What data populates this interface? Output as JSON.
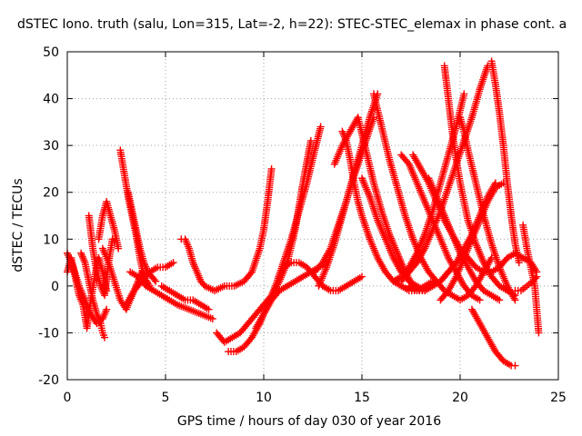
{
  "chart_data": {
    "type": "scatter",
    "title": "dSTEC Iono. truth (salu, Lon=315, Lat=-2, h=22): STEC-STEC_elemax in phase cont. a",
    "xlabel": "GPS time / hours of day 030 of year 2016",
    "ylabel": "dSTEC  / TECUs",
    "xlim": [
      0,
      25
    ],
    "ylim": [
      -20,
      50
    ],
    "xticks": [
      0,
      5,
      10,
      15,
      20,
      25
    ],
    "yticks": [
      -20,
      -10,
      0,
      10,
      20,
      30,
      40,
      50
    ],
    "grid": true,
    "marker": "+",
    "color": "#ff0000",
    "series": [
      {
        "x": [
          0.0,
          0.2,
          0.4,
          0.6,
          0.8,
          1.0,
          1.2,
          1.4,
          1.6,
          1.8,
          2.0
        ],
        "y": [
          3,
          6,
          2,
          -2,
          -4,
          -9,
          -3,
          2,
          6,
          3,
          -1
        ]
      },
      {
        "x": [
          0.0,
          0.3,
          0.6,
          0.9,
          1.2,
          1.5,
          1.8,
          2.0
        ],
        "y": [
          7,
          4,
          0,
          -3,
          -6,
          -8,
          -7,
          -5
        ]
      },
      {
        "x": [
          0.7,
          0.9,
          1.1,
          1.3,
          1.5,
          1.7,
          1.8,
          1.9
        ],
        "y": [
          7,
          5,
          1,
          -3,
          -6,
          -8,
          -10,
          -11
        ]
      },
      {
        "x": [
          1.1,
          1.3,
          1.5,
          1.7,
          1.9,
          2.1,
          2.3
        ],
        "y": [
          15,
          8,
          3,
          0,
          -2,
          5,
          10
        ]
      },
      {
        "x": [
          1.6,
          1.8,
          2.0,
          2.2,
          2.4,
          2.6
        ],
        "y": [
          10,
          15,
          18,
          15,
          12,
          8
        ]
      },
      {
        "x": [
          1.8,
          2.1,
          2.4,
          2.7,
          3.0,
          3.4,
          3.8
        ],
        "y": [
          8,
          5,
          1,
          -3,
          -5,
          -1,
          3
        ]
      },
      {
        "x": [
          2.7,
          2.9,
          3.1,
          3.3,
          3.5,
          3.7,
          3.9,
          4.2
        ],
        "y": [
          29,
          24,
          19,
          15,
          11,
          6,
          2,
          0
        ]
      },
      {
        "x": [
          3.1,
          3.3,
          3.5,
          3.7,
          3.9,
          4.1,
          4.3,
          4.5
        ],
        "y": [
          20,
          16,
          12,
          8,
          5,
          3,
          2,
          1
        ]
      },
      {
        "x": [
          3.0,
          3.4,
          3.8,
          4.2,
          4.6,
          5.0,
          5.4
        ],
        "y": [
          -4,
          -1,
          1,
          3,
          4,
          4,
          5
        ]
      },
      {
        "x": [
          3.2,
          3.6,
          4.0,
          4.4,
          4.8,
          5.2,
          5.6,
          6.2,
          6.8,
          7.4
        ],
        "y": [
          3,
          2,
          0,
          -1,
          -2,
          -3,
          -4,
          -5,
          -6,
          -7
        ]
      },
      {
        "x": [
          4.8,
          5.2,
          5.6,
          6.0,
          6.4,
          6.8,
          7.2
        ],
        "y": [
          0,
          -1,
          -2,
          -3,
          -3,
          -4,
          -5
        ]
      },
      {
        "x": [
          5.8,
          6.0,
          6.2,
          6.4,
          6.6,
          6.8,
          7.0,
          7.5,
          8.0,
          8.5,
          9.0,
          9.4,
          9.8,
          10.0,
          10.2,
          10.4
        ],
        "y": [
          10,
          10,
          8,
          5,
          3,
          1,
          0,
          -1,
          0,
          0,
          1,
          3,
          8,
          12,
          18,
          25
        ]
      },
      {
        "x": [
          7.6,
          8.0,
          8.4,
          8.8,
          9.2,
          9.6,
          10.0,
          10.4,
          10.8,
          11.2,
          11.6,
          12.0,
          12.4
        ],
        "y": [
          -10,
          -12,
          -11,
          -10,
          -8,
          -6,
          -4,
          -2,
          1,
          5,
          12,
          22,
          31
        ]
      },
      {
        "x": [
          8.2,
          8.6,
          9.0,
          9.4,
          9.8,
          10.2,
          10.6,
          11.0,
          11.4,
          11.8,
          12.2,
          12.6,
          12.9
        ],
        "y": [
          -14,
          -14,
          -13,
          -11,
          -8,
          -4,
          0,
          5,
          10,
          16,
          22,
          29,
          34
        ]
      },
      {
        "x": [
          9.6,
          10.0,
          10.4,
          10.8,
          11.2,
          11.6,
          12.0,
          12.4,
          12.8,
          13.2
        ],
        "y": [
          -9,
          -6,
          -3,
          -1,
          0,
          1,
          2,
          3,
          4,
          5
        ]
      },
      {
        "x": [
          11.0,
          11.4,
          11.8,
          12.2,
          12.6,
          13.0,
          13.4,
          13.8,
          14.2,
          14.6,
          15.0
        ],
        "y": [
          4,
          5,
          5,
          4,
          2,
          0,
          -1,
          -1,
          0,
          1,
          2
        ]
      },
      {
        "x": [
          12.6,
          13.0,
          13.4,
          13.8,
          14.2,
          14.6,
          15.0,
          15.4,
          15.8
        ],
        "y": [
          3,
          5,
          8,
          13,
          18,
          24,
          30,
          36,
          41
        ]
      },
      {
        "x": [
          12.8,
          13.2,
          13.6,
          14.0,
          14.4,
          14.8,
          15.2,
          15.6
        ],
        "y": [
          0,
          4,
          9,
          15,
          21,
          26,
          31,
          36
        ]
      },
      {
        "x": [
          13.6,
          14.0,
          14.4,
          14.8,
          15.2,
          15.6,
          16.0,
          16.4,
          16.8,
          17.2,
          17.6
        ],
        "y": [
          26,
          30,
          33,
          36,
          29,
          22,
          16,
          11,
          7,
          3,
          0
        ]
      },
      {
        "x": [
          14.0,
          14.2,
          14.4,
          14.6,
          14.8,
          15.0,
          15.4,
          15.8,
          16.2,
          16.6,
          17.0,
          17.4,
          17.8,
          18.2,
          18.6
        ],
        "y": [
          33,
          31,
          27,
          22,
          18,
          15,
          10,
          6,
          3,
          1,
          0,
          -1,
          -1,
          0,
          1
        ]
      },
      {
        "x": [
          15.0,
          15.4,
          15.8,
          16.2,
          16.6,
          17.0,
          17.4,
          17.8,
          18.2,
          18.6,
          19.0,
          19.4
        ],
        "y": [
          23,
          19,
          14,
          10,
          6,
          3,
          1,
          0,
          -1,
          0,
          1,
          3
        ]
      },
      {
        "x": [
          15.6,
          16.0,
          16.4,
          16.8,
          17.2,
          17.6,
          18.0,
          18.4,
          18.8,
          19.2,
          19.6,
          20.0,
          20.4,
          20.8,
          21.2,
          21.6
        ],
        "y": [
          41,
          34,
          27,
          21,
          15,
          10,
          6,
          3,
          1,
          -1,
          -2,
          -3,
          -2,
          0,
          3,
          6
        ]
      },
      {
        "x": [
          16.6,
          17.0,
          17.4,
          17.8,
          18.2,
          18.6,
          19.0,
          19.4,
          19.8,
          20.2
        ],
        "y": [
          1,
          2,
          4,
          7,
          11,
          16,
          22,
          28,
          34,
          41
        ]
      },
      {
        "x": [
          17.0,
          17.4,
          17.8,
          18.2,
          18.6,
          19.0,
          19.4,
          19.8,
          20.2,
          20.6,
          21.0
        ],
        "y": [
          28,
          26,
          22,
          18,
          14,
          10,
          6,
          3,
          0,
          -2,
          -3
        ]
      },
      {
        "x": [
          17.0,
          17.4,
          17.8,
          18.2,
          18.6,
          19.0,
          19.4,
          19.8,
          20.2,
          20.6,
          21.0,
          21.4
        ],
        "y": [
          1,
          3,
          5,
          8,
          12,
          16,
          21,
          26,
          31,
          36,
          42,
          47
        ]
      },
      {
        "x": [
          17.4,
          17.8,
          18.2,
          18.6,
          19.0,
          19.4,
          19.8,
          20.2,
          20.6,
          21.0,
          21.4,
          21.8
        ],
        "y": [
          0,
          -1,
          -1,
          0,
          1,
          3,
          5,
          8,
          11,
          15,
          19,
          22
        ]
      },
      {
        "x": [
          17.6,
          18.0,
          18.4,
          18.8,
          19.2,
          19.6,
          20.0,
          20.4,
          20.8,
          21.2,
          21.6,
          22.0
        ],
        "y": [
          28,
          25,
          22,
          18,
          14,
          11,
          8,
          6,
          4,
          3,
          3,
          4
        ]
      },
      {
        "x": [
          18.4,
          18.8,
          19.2,
          19.6,
          20.0,
          20.4,
          20.8,
          21.2,
          21.6,
          22.0
        ],
        "y": [
          23,
          19,
          15,
          11,
          7,
          4,
          1,
          -1,
          -2,
          -3
        ]
      },
      {
        "x": [
          19.0,
          19.4,
          19.8,
          20.2,
          20.6,
          21.0,
          21.4,
          21.8,
          22.2
        ],
        "y": [
          -3,
          -1,
          2,
          6,
          10,
          14,
          18,
          21,
          22
        ]
      },
      {
        "x": [
          19.2,
          19.4,
          19.6,
          19.8,
          20.0,
          20.2,
          20.4,
          20.8,
          21.2,
          21.6,
          22.0,
          22.4,
          22.8
        ],
        "y": [
          47,
          40,
          33,
          27,
          22,
          18,
          14,
          9,
          5,
          2,
          0,
          -1,
          -2
        ]
      },
      {
        "x": [
          20.0,
          20.2,
          20.4,
          20.8,
          21.2,
          21.6,
          22.0,
          22.4,
          22.8
        ],
        "y": [
          36,
          33,
          29,
          22,
          15,
          9,
          4,
          0,
          -3
        ]
      },
      {
        "x": [
          21.6,
          21.8,
          22.0,
          22.2,
          22.4,
          22.6,
          22.8,
          23.0
        ],
        "y": [
          48,
          43,
          37,
          30,
          22,
          15,
          9,
          5
        ]
      },
      {
        "x": [
          20.6,
          21.0,
          21.4,
          21.8,
          22.2,
          22.6,
          22.8
        ],
        "y": [
          -5,
          -8,
          -11,
          -14,
          -16,
          -17,
          -17
        ]
      },
      {
        "x": [
          22.0,
          22.4,
          22.8,
          23.2,
          23.6,
          23.9
        ],
        "y": [
          4,
          6,
          7,
          6,
          5,
          3
        ]
      },
      {
        "x": [
          23.2,
          23.4,
          23.6,
          23.8,
          23.9,
          24.0
        ],
        "y": [
          13,
          8,
          4,
          0,
          -5,
          -10
        ]
      },
      {
        "x": [
          22.8,
          23.1,
          23.4,
          23.7,
          23.9
        ],
        "y": [
          -1,
          -1,
          0,
          1,
          2
        ]
      }
    ]
  }
}
